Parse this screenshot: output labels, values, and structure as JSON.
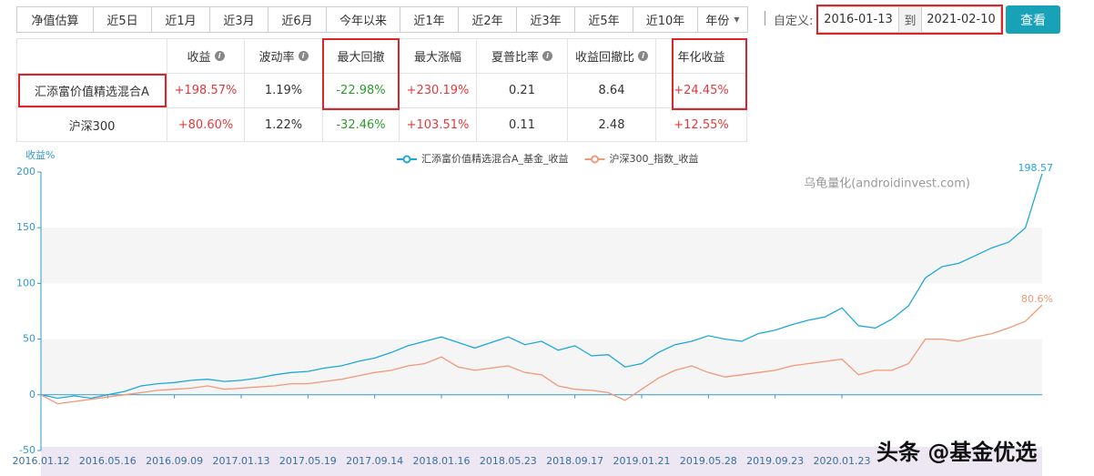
{
  "toolbar": {
    "tabs": [
      "净值估算",
      "近5日",
      "近1月",
      "近3月",
      "近6月",
      "今年以来",
      "近1年",
      "近2年",
      "近3年",
      "近5年",
      "近10年",
      "年份"
    ],
    "custom_label": "自定义:",
    "start_date": "2016-01-13",
    "to": "到",
    "end_date": "2021-02-10",
    "button": "查看"
  },
  "table": {
    "columns": [
      "收益",
      "波动率",
      "最大回撤",
      "最大涨幅",
      "夏普比率",
      "收益回撤比",
      "年化收益"
    ],
    "rows": [
      {
        "name": "汇添富价值精选混合A",
        "cells": [
          "+198.57%",
          "1.19%",
          "-22.98%",
          "+230.19%",
          "0.21",
          "8.64",
          "+24.45%"
        ]
      },
      {
        "name": "沪深300",
        "cells": [
          "+80.60%",
          "1.22%",
          "-32.46%",
          "+103.51%",
          "0.11",
          "2.48",
          "+12.55%"
        ]
      }
    ]
  },
  "watermark": "乌龟量化(androidinvest.com)",
  "footer_watermark": "头条 @基金优选",
  "chart_data": {
    "type": "line",
    "y_label": "收益%",
    "categories": [
      "2016.01.12",
      null,
      null,
      null,
      "2016.05.16",
      null,
      null,
      null,
      "2016.09.09",
      null,
      null,
      null,
      "2017.01.13",
      null,
      null,
      null,
      "2017.05.19",
      null,
      null,
      null,
      "2017.09.14",
      null,
      null,
      null,
      "2018.01.16",
      null,
      null,
      null,
      "2018.05.23",
      null,
      null,
      null,
      "2018.09.17",
      null,
      null,
      null,
      "2019.01.21",
      null,
      null,
      null,
      "2019.05.28",
      null,
      null,
      null,
      "2019.09.23",
      null,
      null,
      null,
      "2020.01.23",
      null,
      null,
      null,
      null,
      null,
      null,
      null,
      null,
      null,
      null,
      null,
      null
    ],
    "series": [
      {
        "name": "汇添富价值精选混合A_基金_收益",
        "color": "#1ea8d8",
        "end_label": "198.57",
        "values": [
          0,
          -3,
          -1,
          -3,
          0,
          3,
          8,
          10,
          11,
          13,
          14,
          12,
          13,
          15,
          18,
          20,
          21,
          24,
          26,
          30,
          33,
          38,
          44,
          48,
          52,
          47,
          42,
          47,
          52,
          45,
          48,
          40,
          44,
          35,
          36,
          25,
          28,
          38,
          45,
          48,
          53,
          50,
          48,
          55,
          58,
          63,
          67,
          70,
          78,
          62,
          60,
          68,
          80,
          105,
          115,
          118,
          125,
          132,
          137,
          150,
          198.57
        ]
      },
      {
        "name": "沪深300_指数_收益",
        "color": "#f0997a",
        "end_label": "80.6%",
        "values": [
          0,
          -8,
          -6,
          -4,
          -2,
          0,
          2,
          4,
          5,
          6,
          8,
          5,
          6,
          7,
          8,
          10,
          10,
          12,
          14,
          17,
          20,
          22,
          26,
          28,
          34,
          25,
          22,
          24,
          26,
          20,
          18,
          8,
          5,
          4,
          2,
          -5,
          5,
          15,
          22,
          26,
          20,
          16,
          18,
          20,
          22,
          26,
          28,
          30,
          32,
          18,
          22,
          22,
          28,
          50,
          50,
          48,
          52,
          55,
          60,
          66,
          80.6
        ]
      }
    ],
    "ylim": [
      -50,
      200
    ],
    "yticks": [
      -50,
      0,
      50,
      100,
      150,
      200
    ],
    "split_area": true
  }
}
